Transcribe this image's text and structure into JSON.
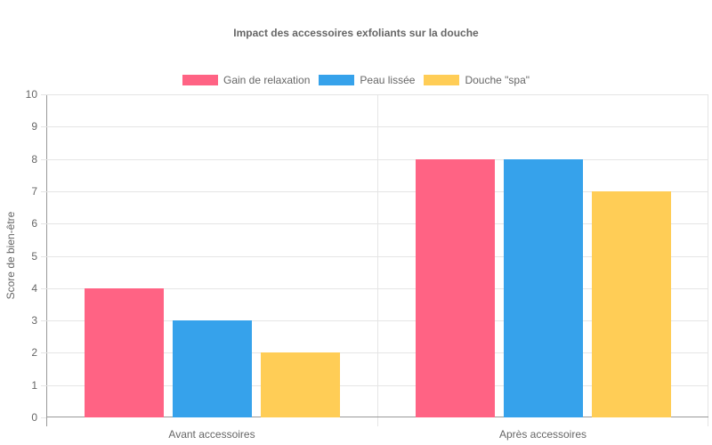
{
  "chart_data": {
    "type": "bar",
    "title": "Impact des accessoires exfoliants sur la douche",
    "xlabel": "",
    "ylabel": "Score de bien-être",
    "categories": [
      "Avant accessoires",
      "Après accessoires"
    ],
    "series": [
      {
        "name": "Gain de relaxation",
        "color": "#ff6384",
        "values": [
          4,
          8
        ]
      },
      {
        "name": "Peau lissée",
        "color": "#36a2eb",
        "values": [
          3,
          8
        ]
      },
      {
        "name": "Douche \"spa\"",
        "color": "#ffcd56",
        "values": [
          2,
          7
        ]
      }
    ],
    "ylim": [
      0,
      10
    ],
    "yticks": [
      "0",
      "1",
      "2",
      "3",
      "4",
      "5",
      "6",
      "7",
      "8",
      "9",
      "10"
    ],
    "grid": true,
    "legend_position": "top"
  }
}
